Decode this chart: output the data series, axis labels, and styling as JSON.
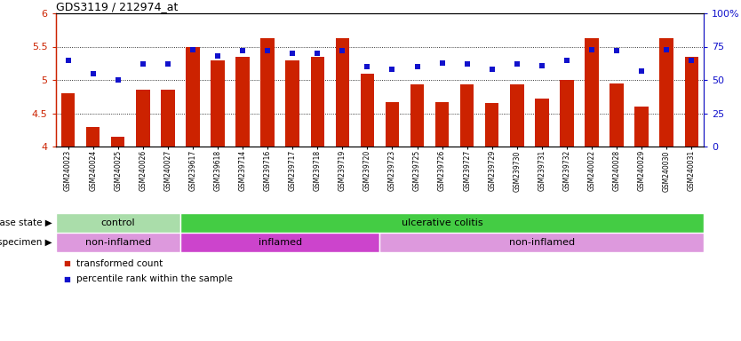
{
  "title": "GDS3119 / 212974_at",
  "categories": [
    "GSM240023",
    "GSM240024",
    "GSM240025",
    "GSM240026",
    "GSM240027",
    "GSM239617",
    "GSM239618",
    "GSM239714",
    "GSM239716",
    "GSM239717",
    "GSM239718",
    "GSM239719",
    "GSM239720",
    "GSM239723",
    "GSM239725",
    "GSM239726",
    "GSM239727",
    "GSM239729",
    "GSM239730",
    "GSM239731",
    "GSM239732",
    "GSM240022",
    "GSM240028",
    "GSM240029",
    "GSM240030",
    "GSM240031"
  ],
  "bar_values": [
    4.8,
    4.3,
    4.15,
    4.85,
    4.85,
    5.5,
    5.3,
    5.35,
    5.63,
    5.3,
    5.35,
    5.63,
    5.1,
    4.67,
    4.93,
    4.67,
    4.93,
    4.65,
    4.93,
    4.72,
    5.0,
    5.63,
    4.95,
    4.6,
    5.63,
    5.35
  ],
  "percentile_values": [
    65,
    55,
    50,
    62,
    62,
    73,
    68,
    72,
    72,
    70,
    70,
    72,
    60,
    58,
    60,
    63,
    62,
    58,
    62,
    61,
    65,
    73,
    72,
    57,
    73,
    65
  ],
  "ylim_left": [
    4.0,
    6.0
  ],
  "ylim_right": [
    0,
    100
  ],
  "yticks_left": [
    4.0,
    4.5,
    5.0,
    5.5,
    6.0
  ],
  "ytick_labels_left": [
    "4",
    "4.5",
    "5",
    "5.5",
    "6"
  ],
  "yticks_right": [
    0,
    25,
    50,
    75,
    100
  ],
  "ytick_labels_right": [
    "0",
    "25",
    "50",
    "75",
    "100%"
  ],
  "bar_color": "#CC2200",
  "square_color": "#1111CC",
  "bg_color": "#FFFFFF",
  "plot_bg_color": "#FFFFFF",
  "disease_state_labels": [
    {
      "label": "control",
      "start": 0,
      "end": 5,
      "color": "#AADDAA"
    },
    {
      "label": "ulcerative colitis",
      "start": 5,
      "end": 26,
      "color": "#44CC44"
    }
  ],
  "specimen_labels": [
    {
      "label": "non-inflamed",
      "start": 0,
      "end": 5,
      "color": "#DD99DD"
    },
    {
      "label": "inflamed",
      "start": 5,
      "end": 13,
      "color": "#CC44CC"
    },
    {
      "label": "non-inflamed",
      "start": 13,
      "end": 26,
      "color": "#DD99DD"
    }
  ],
  "legend_items": [
    {
      "label": "transformed count",
      "color": "#CC2200"
    },
    {
      "label": "percentile rank within the sample",
      "color": "#1111CC"
    }
  ],
  "disease_state_row_label": "disease state",
  "specimen_row_label": "specimen"
}
